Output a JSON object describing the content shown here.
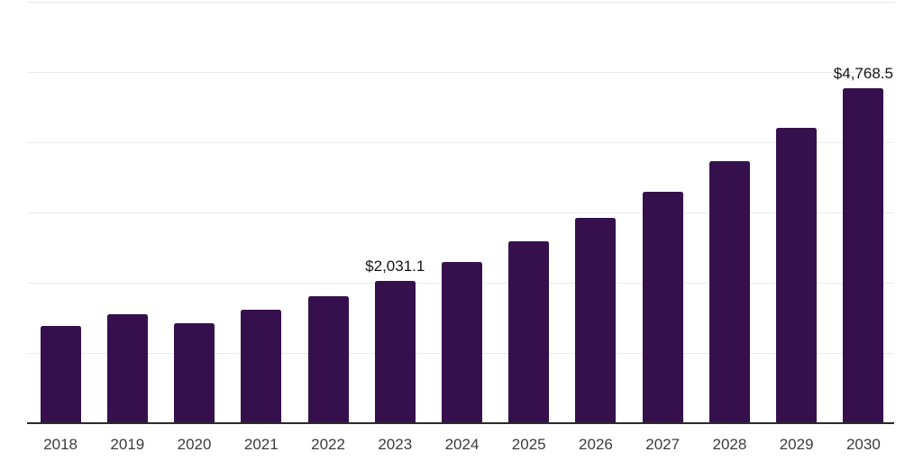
{
  "chart_data": {
    "type": "bar",
    "title": "",
    "xlabel": "",
    "ylabel": "",
    "categories": [
      "2018",
      "2019",
      "2020",
      "2021",
      "2022",
      "2023",
      "2024",
      "2025",
      "2026",
      "2027",
      "2028",
      "2029",
      "2030"
    ],
    "values": [
      1379,
      1546,
      1417,
      1609,
      1805,
      2031.1,
      2296,
      2592,
      2920,
      3295,
      3730,
      4210,
      4768.5
    ],
    "data_labels": {
      "2023": "$2,031.1",
      "2030": "$4,768.5"
    },
    "ylim": [
      0,
      6000
    ],
    "gridline_step": 1000,
    "grid": true,
    "legend": false,
    "colors": {
      "bar": "#36104D",
      "gridline": "#ebebeb",
      "axis_line": "#2b2b2b",
      "tick_label": "#3c3c3c",
      "data_label": "#141414",
      "background": "#ffffff"
    }
  }
}
